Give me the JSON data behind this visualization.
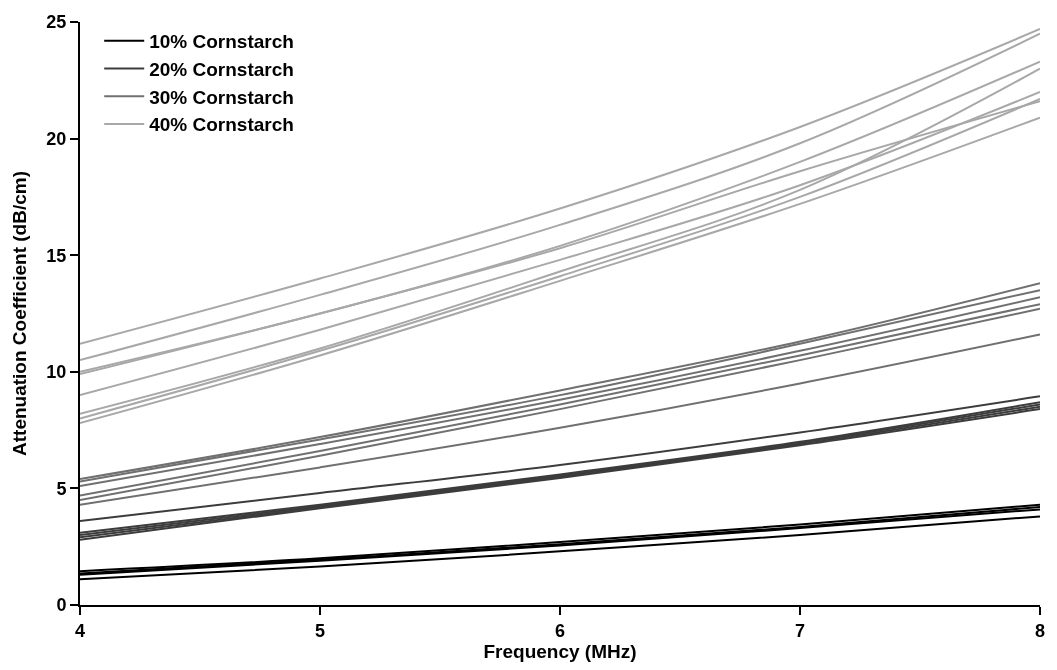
{
  "chart_data": {
    "type": "line",
    "xlabel": "Frequency (MHz)",
    "ylabel": "Attenuation Coefficient (dB/cm)",
    "x": [
      4,
      5,
      6,
      7,
      8
    ],
    "xlim": [
      4,
      8
    ],
    "xticks": [
      4,
      5,
      6,
      7,
      8
    ],
    "ylim": [
      0,
      25
    ],
    "yticks": [
      0,
      5,
      10,
      15,
      20,
      25
    ],
    "legend": "top left",
    "marker": "none",
    "line_style": "solid",
    "series": [
      {
        "name": "10% Cornstarch",
        "color": "#000000",
        "values": [
          1.45,
          2.0,
          2.7,
          3.45,
          4.3
        ]
      },
      {
        "color": "#000000",
        "values": [
          1.35,
          1.95,
          2.6,
          3.35,
          4.2
        ]
      },
      {
        "color": "#000000",
        "values": [
          1.3,
          1.9,
          2.55,
          3.3,
          4.1
        ]
      },
      {
        "color": "#000000",
        "values": [
          1.1,
          1.65,
          2.3,
          3.0,
          3.8
        ]
      },
      {
        "name": "20% Cornstarch",
        "color": "#3c3c3c",
        "values": [
          3.6,
          4.8,
          6.0,
          7.4,
          8.95
        ]
      },
      {
        "color": "#3c3c3c",
        "values": [
          3.1,
          4.3,
          5.6,
          7.0,
          8.7
        ]
      },
      {
        "color": "#3c3c3c",
        "values": [
          3.0,
          4.25,
          5.55,
          6.95,
          8.6
        ]
      },
      {
        "color": "#3c3c3c",
        "values": [
          2.9,
          4.2,
          5.5,
          6.9,
          8.5
        ]
      },
      {
        "color": "#3c3c3c",
        "values": [
          2.8,
          4.15,
          5.45,
          6.85,
          8.4
        ]
      },
      {
        "name": "30% Cornstarch",
        "color": "#707070",
        "values": [
          5.4,
          7.2,
          9.2,
          11.3,
          13.8
        ]
      },
      {
        "color": "#707070",
        "values": [
          5.3,
          7.1,
          9.0,
          11.2,
          13.5
        ]
      },
      {
        "color": "#707070",
        "values": [
          5.1,
          6.9,
          8.8,
          10.9,
          13.2
        ]
      },
      {
        "color": "#707070",
        "values": [
          4.7,
          6.6,
          8.6,
          10.7,
          12.9
        ]
      },
      {
        "color": "#707070",
        "values": [
          4.5,
          6.4,
          8.4,
          10.5,
          12.7
        ]
      },
      {
        "color": "#707070",
        "values": [
          4.3,
          5.9,
          7.6,
          9.5,
          11.6
        ]
      },
      {
        "name": "40% Cornstarch",
        "color": "#a8a8a8",
        "values": [
          11.2,
          14.0,
          17.0,
          20.5,
          24.7
        ]
      },
      {
        "color": "#a8a8a8",
        "values": [
          10.5,
          13.3,
          16.3,
          19.8,
          24.5
        ]
      },
      {
        "color": "#a8a8a8",
        "values": [
          10.0,
          12.5,
          15.4,
          19.0,
          23.3
        ]
      },
      {
        "color": "#a8a8a8",
        "values": [
          9.9,
          12.5,
          15.3,
          18.6,
          21.6
        ]
      },
      {
        "color": "#a8a8a8",
        "values": [
          9.0,
          11.8,
          14.8,
          18.0,
          22.0
        ]
      },
      {
        "color": "#a8a8a8",
        "values": [
          8.2,
          11.0,
          14.3,
          17.8,
          23.0
        ]
      },
      {
        "color": "#a8a8a8",
        "values": [
          8.0,
          10.9,
          14.1,
          17.5,
          21.7
        ]
      },
      {
        "color": "#a8a8a8",
        "values": [
          7.8,
          10.7,
          13.9,
          17.2,
          20.9
        ]
      }
    ]
  }
}
